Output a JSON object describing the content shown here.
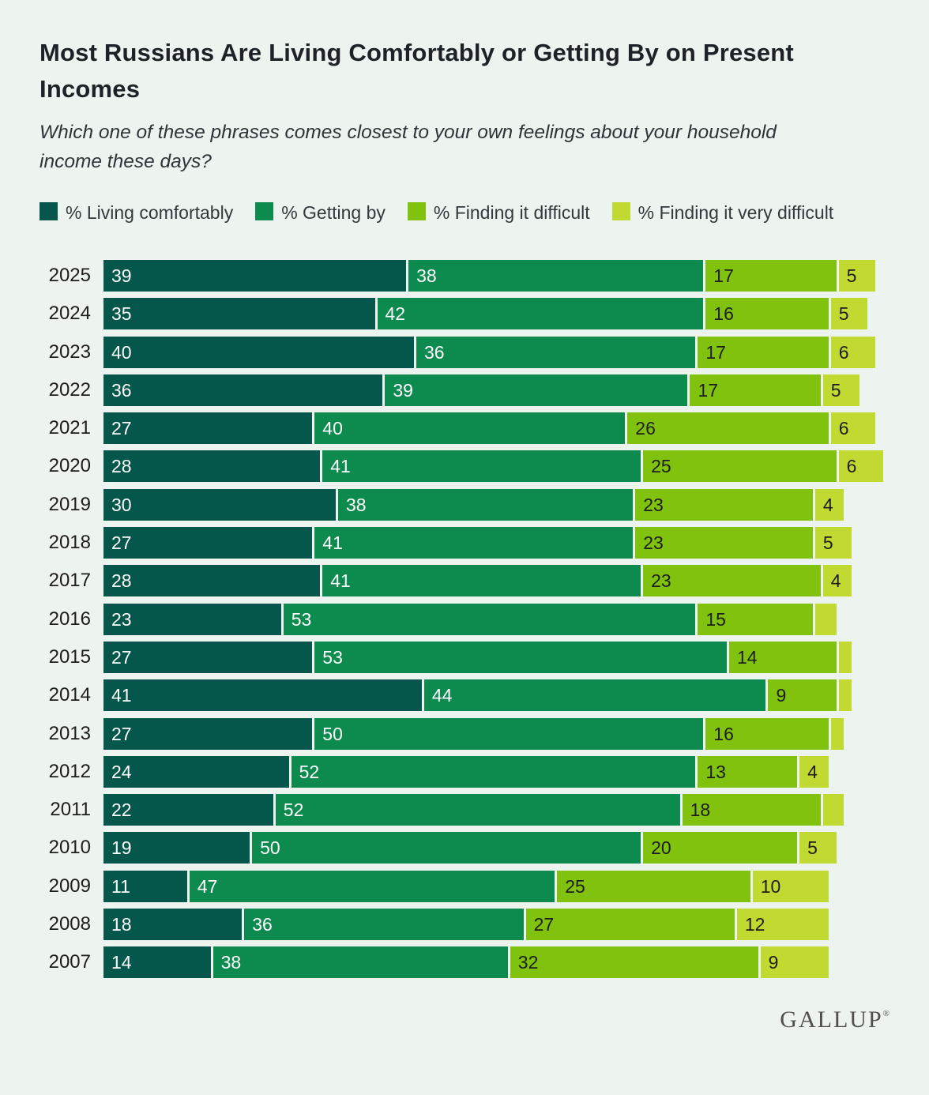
{
  "title": "Most Russians Are Living Comfortably or Getting By on Present Incomes",
  "subtitle": "Which one of these phrases comes closest to your own feelings about your household income these days?",
  "footer": {
    "logo_text": "GALLUP",
    "logo_mark": "®"
  },
  "colors": {
    "background": "#edf3ee",
    "living_comfortably": "#04574a",
    "getting_by": "#0d8a4e",
    "finding_it_difficult": "#80c20d",
    "finding_it_very_difficult": "#c0da31",
    "label_on_dark": "#ffffff",
    "label_on_light": "#1d1d1b"
  },
  "chart_data": {
    "type": "bar",
    "orientation": "horizontal",
    "stacked": true,
    "xlim": [
      0,
      100
    ],
    "value_unit": "%",
    "label_min_value": 4,
    "categories": [
      "2025",
      "2024",
      "2023",
      "2022",
      "2021",
      "2020",
      "2019",
      "2018",
      "2017",
      "2016",
      "2015",
      "2014",
      "2013",
      "2012",
      "2011",
      "2010",
      "2009",
      "2008",
      "2007"
    ],
    "series": [
      {
        "name": "% Living comfortably",
        "color": "#04574a",
        "label_color": "#ffffff",
        "values": [
          39,
          35,
          40,
          36,
          27,
          28,
          30,
          27,
          28,
          23,
          27,
          41,
          27,
          24,
          22,
          19,
          11,
          18,
          14
        ]
      },
      {
        "name": "% Getting by",
        "color": "#0d8a4e",
        "label_color": "#ffffff",
        "values": [
          38,
          42,
          36,
          39,
          40,
          41,
          38,
          41,
          41,
          53,
          53,
          44,
          50,
          52,
          52,
          50,
          47,
          36,
          38
        ]
      },
      {
        "name": "% Finding it difficult",
        "color": "#80c20d",
        "label_color": "#1d1d1b",
        "values": [
          17,
          16,
          17,
          17,
          26,
          25,
          23,
          23,
          23,
          15,
          14,
          9,
          16,
          13,
          18,
          20,
          25,
          27,
          32
        ]
      },
      {
        "name": "% Finding it very difficult",
        "color": "#c0da31",
        "label_color": "#1d1d1b",
        "values": [
          5,
          5,
          6,
          5,
          6,
          6,
          4,
          5,
          4,
          3,
          2,
          2,
          2,
          4,
          3,
          5,
          10,
          12,
          9
        ]
      }
    ]
  }
}
